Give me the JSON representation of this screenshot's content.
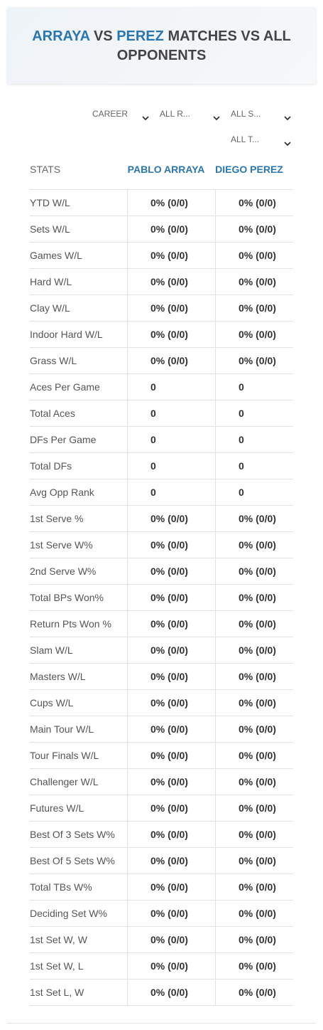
{
  "header": {
    "title": {
      "player1": "ARRAYA",
      "vs": "VS",
      "player2": "PEREZ",
      "rest": "MATCHES VS ALL OPPONENTS"
    }
  },
  "filters": [
    "CAREER",
    "ALL R...",
    "ALL S...",
    "ALL T..."
  ],
  "table": {
    "columns": [
      "STATS",
      "PABLO ARRAYA",
      "DIEGO PEREZ"
    ],
    "rows": [
      [
        "YTD W/L",
        "0% (0/0)",
        "0% (0/0)"
      ],
      [
        "Sets W/L",
        "0% (0/0)",
        "0% (0/0)"
      ],
      [
        "Games W/L",
        "0% (0/0)",
        "0% (0/0)"
      ],
      [
        "Hard W/L",
        "0% (0/0)",
        "0% (0/0)"
      ],
      [
        "Clay W/L",
        "0% (0/0)",
        "0% (0/0)"
      ],
      [
        "Indoor Hard W/L",
        "0% (0/0)",
        "0% (0/0)"
      ],
      [
        "Grass W/L",
        "0% (0/0)",
        "0% (0/0)"
      ],
      [
        "Aces Per Game",
        "0",
        "0"
      ],
      [
        "Total Aces",
        "0",
        "0"
      ],
      [
        "DFs Per Game",
        "0",
        "0"
      ],
      [
        "Total DFs",
        "0",
        "0"
      ],
      [
        "Avg Opp Rank",
        "0",
        "0"
      ],
      [
        "1st Serve %",
        "0% (0/0)",
        "0% (0/0)"
      ],
      [
        "1st Serve W%",
        "0% (0/0)",
        "0% (0/0)"
      ],
      [
        "2nd Serve W%",
        "0% (0/0)",
        "0% (0/0)"
      ],
      [
        "Total BPs Won%",
        "0% (0/0)",
        "0% (0/0)"
      ],
      [
        "Return Pts Won %",
        "0% (0/0)",
        "0% (0/0)"
      ],
      [
        "Slam W/L",
        "0% (0/0)",
        "0% (0/0)"
      ],
      [
        "Masters W/L",
        "0% (0/0)",
        "0% (0/0)"
      ],
      [
        "Cups W/L",
        "0% (0/0)",
        "0% (0/0)"
      ],
      [
        "Main Tour W/L",
        "0% (0/0)",
        "0% (0/0)"
      ],
      [
        "Tour Finals W/L",
        "0% (0/0)",
        "0% (0/0)"
      ],
      [
        "Challenger W/L",
        "0% (0/0)",
        "0% (0/0)"
      ],
      [
        "Futures W/L",
        "0% (0/0)",
        "0% (0/0)"
      ],
      [
        "Best Of 3 Sets W%",
        "0% (0/0)",
        "0% (0/0)"
      ],
      [
        "Best Of 5 Sets W%",
        "0% (0/0)",
        "0% (0/0)"
      ],
      [
        "Total TBs W%",
        "0% (0/0)",
        "0% (0/0)"
      ],
      [
        "Deciding Set W%",
        "0% (0/0)",
        "0% (0/0)"
      ],
      [
        "1st Set W, W",
        "0% (0/0)",
        "0% (0/0)"
      ],
      [
        "1st Set W, L",
        "0% (0/0)",
        "0% (0/0)"
      ],
      [
        "1st Set L, W",
        "0% (0/0)",
        "0% (0/0)"
      ]
    ]
  }
}
